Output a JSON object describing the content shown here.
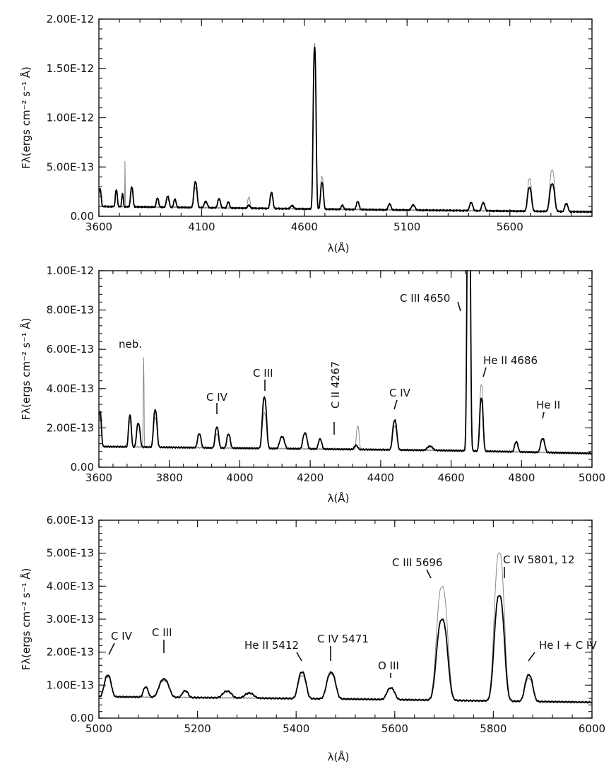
{
  "chart_data": [
    {
      "type": "line",
      "ylabel": "Fλ(ergs cm⁻² s⁻¹ Å)",
      "xlabel": "λ(Å)",
      "xlim": [
        3600,
        6000
      ],
      "ylim": [
        0,
        2e-12
      ],
      "xticks": [
        3600,
        4100,
        4600,
        5100,
        5600
      ],
      "xtick_labels": [
        "3600",
        "4100",
        "4600",
        "5100",
        "5600"
      ],
      "yticks": [
        0,
        5e-13,
        1e-12,
        1.5e-12,
        2e-12
      ],
      "ytick_labels": [
        "0.00",
        "5.00E-13",
        "1.00E-12",
        "1.50E-12",
        "2.00E-12"
      ],
      "continuum": [
        [
          3600,
          1e-13
        ],
        [
          4600,
          7.5e-14
        ],
        [
          5000,
          6.5e-14
        ],
        [
          6000,
          4.5e-14
        ]
      ],
      "series": [
        {
          "style": "thick-black",
          "lines": [
            [
              3605,
              1.8e-13,
              6
            ],
            [
              3685,
              1.7e-13,
              5
            ],
            [
              3715,
              1.3e-13,
              4
            ],
            [
              3760,
              2e-13,
              6
            ],
            [
              3885,
              9e-14,
              6
            ],
            [
              3935,
              1.1e-13,
              7
            ],
            [
              3970,
              8e-14,
              6
            ],
            [
              4070,
              2.6e-13,
              8
            ],
            [
              4120,
              6e-14,
              8
            ],
            [
              4185,
              9e-14,
              7
            ],
            [
              4230,
              6e-14,
              6
            ],
            [
              4330,
              3e-14,
              6
            ],
            [
              4440,
              1.6e-13,
              7
            ],
            [
              4540,
              3e-14,
              8
            ],
            [
              4650,
              1.64e-12,
              7
            ],
            [
              4686,
              2.7e-13,
              7
            ],
            [
              4785,
              4e-14,
              6
            ],
            [
              4860,
              8e-14,
              7
            ],
            [
              5015,
              6e-14,
              7
            ],
            [
              5130,
              5e-14,
              9
            ],
            [
              5412,
              8e-14,
              8
            ],
            [
              5471,
              8e-14,
              8
            ],
            [
              5696,
              2.4e-13,
              10
            ],
            [
              5806,
              2.8e-13,
              12
            ],
            [
              5875,
              8e-14,
              8
            ]
          ]
        },
        {
          "style": "thin-gray",
          "lines": [
            [
              3605,
              1.6e-13,
              6
            ],
            [
              3685,
              1.4e-13,
              5
            ],
            [
              3727,
              4.7e-13,
              1.2
            ],
            [
              3760,
              1.6e-13,
              6
            ],
            [
              3935,
              8e-14,
              7
            ],
            [
              4070,
              2e-13,
              8
            ],
            [
              4330,
              1.1e-13,
              6
            ],
            [
              4440,
              1.3e-13,
              7
            ],
            [
              4650,
              1.68e-12,
              7
            ],
            [
              4686,
              3.3e-13,
              7
            ],
            [
              5696,
              3.3e-13,
              10
            ],
            [
              5806,
              4.2e-13,
              12
            ],
            [
              5875,
              7e-14,
              8
            ]
          ]
        }
      ]
    },
    {
      "type": "line",
      "ylabel": "Fλ(ergs cm⁻² s⁻¹ Å)",
      "xlabel": "λ(Å)",
      "xlim": [
        3600,
        5000
      ],
      "ylim": [
        0,
        1e-12
      ],
      "xticks": [
        3600,
        3800,
        4000,
        4200,
        4400,
        4600,
        4800,
        5000
      ],
      "xtick_labels": [
        "3600",
        "3800",
        "4000",
        "4200",
        "4400",
        "4600",
        "4800",
        "5000"
      ],
      "yticks": [
        0,
        2e-13,
        4e-13,
        6e-13,
        8e-13,
        1e-12
      ],
      "ytick_labels": [
        "0.00",
        "2.00E-13",
        "4.00E-13",
        "6.00E-13",
        "8.00E-13",
        "1.00E-12"
      ],
      "continuum": [
        [
          3600,
          1.05e-13
        ],
        [
          4600,
          8.5e-14
        ],
        [
          5000,
          7e-14
        ]
      ],
      "series": [
        {
          "style": "thick-black",
          "lines": [
            [
              3603,
              1.8e-13,
              4
            ],
            [
              3688,
              1.6e-13,
              4
            ],
            [
              3712,
              1.2e-13,
              5
            ],
            [
              3760,
              1.9e-13,
              5
            ],
            [
              3885,
              7e-14,
              5
            ],
            [
              3935,
              1.05e-13,
              5
            ],
            [
              3968,
              7e-14,
              5
            ],
            [
              4070,
              2.6e-13,
              6
            ],
            [
              4120,
              6e-14,
              7
            ],
            [
              4185,
              8e-14,
              6
            ],
            [
              4228,
              5e-14,
              5
            ],
            [
              4330,
              2e-14,
              5
            ],
            [
              4440,
              1.5e-13,
              6
            ],
            [
              4540,
              2e-14,
              8
            ],
            [
              4650,
              1.75e-12,
              4.5
            ],
            [
              4686,
              2.7e-13,
              5
            ],
            [
              4785,
              5e-14,
              5
            ],
            [
              4860,
              7e-14,
              6
            ]
          ]
        },
        {
          "style": "thin-gray",
          "lines": [
            [
              3603,
              1.5e-13,
              4
            ],
            [
              3688,
              1.3e-13,
              4
            ],
            [
              3727,
              4.6e-13,
              1.2
            ],
            [
              3760,
              1.5e-13,
              5
            ],
            [
              3935,
              7e-14,
              5
            ],
            [
              4070,
              1.8e-13,
              6
            ],
            [
              4335,
              1.2e-13,
              4
            ],
            [
              4440,
              1.2e-13,
              6
            ],
            [
              4650,
              1.7e-12,
              4.5
            ],
            [
              4686,
              3.4e-13,
              5
            ]
          ]
        }
      ],
      "annotations": [
        {
          "text": "neb.",
          "x": 3727,
          "y": 5.7e-13
        },
        {
          "text": "C IV",
          "x": 3935,
          "y": 2.5e-13
        },
        {
          "text": "C III",
          "x": 4070,
          "y": 3.6e-13
        },
        {
          "text": "C II 4267",
          "x": 4267,
          "y": 1.7e-13
        },
        {
          "text": "C IV",
          "x": 4440,
          "y": 2.4e-13
        },
        {
          "text": "C III 4650",
          "x": 4647,
          "y": 9.9e-13
        },
        {
          "text": "He II 4686",
          "x": 4686,
          "y": 4.2e-13
        },
        {
          "text": "He II",
          "x": 4860,
          "y": 1.5e-13
        }
      ]
    },
    {
      "type": "line",
      "ylabel": "Fλ(ergs cm⁻² s⁻¹ Å)",
      "xlabel": "λ(Å)",
      "xlim": [
        5000,
        6000
      ],
      "ylim": [
        0,
        6e-13
      ],
      "xticks": [
        5000,
        5200,
        5400,
        5600,
        5800,
        6000
      ],
      "xtick_labels": [
        "5000",
        "5200",
        "5400",
        "5600",
        "5800",
        "6000"
      ],
      "yticks": [
        0,
        1e-13,
        2e-13,
        3e-13,
        4e-13,
        5e-13,
        6e-13
      ],
      "ytick_labels": [
        "0.00",
        "1.00E-13",
        "2.00E-13",
        "3.00E-13",
        "4.00E-13",
        "5.00E-13",
        "6.00E-13"
      ],
      "continuum": [
        [
          5000,
          6.5e-14
        ],
        [
          5500,
          5.8e-14
        ],
        [
          6000,
          4.8e-14
        ]
      ],
      "series": [
        {
          "style": "thick-black",
          "lines": [
            [
              5018,
              6.5e-14,
              7
            ],
            [
              5095,
              3e-14,
              5
            ],
            [
              5132,
              5.5e-14,
              10
            ],
            [
              5175,
              2e-14,
              6
            ],
            [
              5260,
              2e-14,
              9
            ],
            [
              5305,
              1.5e-14,
              9
            ],
            [
              5412,
              8e-14,
              8
            ],
            [
              5471,
              8e-14,
              9
            ],
            [
              5592,
              3.5e-14,
              8
            ],
            [
              5696,
              2.45e-13,
              11
            ],
            [
              5812,
              3.2e-13,
              10
            ],
            [
              5872,
              8e-14,
              8
            ]
          ]
        },
        {
          "style": "thin-gray",
          "lines": [
            [
              5018,
              6e-14,
              7
            ],
            [
              5132,
              5e-14,
              10
            ],
            [
              5412,
              7e-14,
              8
            ],
            [
              5471,
              7.5e-14,
              9
            ],
            [
              5592,
              3.5e-14,
              8
            ],
            [
              5696,
              3.45e-13,
              11
            ],
            [
              5812,
              4.5e-13,
              10
            ],
            [
              5872,
              7e-14,
              8
            ]
          ]
        }
      ],
      "annotations": [
        {
          "text": "C IV",
          "x": 5018,
          "y": 1.4e-13
        },
        {
          "text": "C III",
          "x": 5130,
          "y": 1.25e-13
        },
        {
          "text": "He II 5412",
          "x": 5412,
          "y": 1.45e-13
        },
        {
          "text": "C IV 5471",
          "x": 5471,
          "y": 1.55e-13
        },
        {
          "text": "O III",
          "x": 5592,
          "y": 1e-13
        },
        {
          "text": "C III 5696",
          "x": 5690,
          "y": 4.15e-13
        },
        {
          "text": "C IV 5801, 12",
          "x": 5812,
          "y": 4.7e-13
        },
        {
          "text": "He I + C IV",
          "x": 5872,
          "y": 1.45e-13
        }
      ]
    }
  ]
}
